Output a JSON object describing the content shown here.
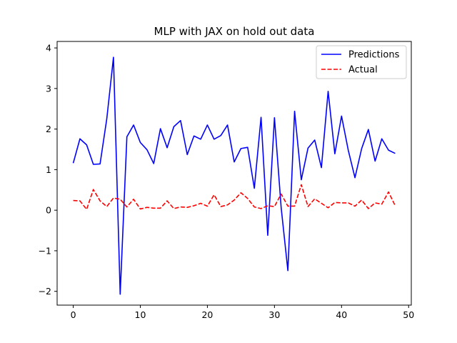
{
  "chart_data": {
    "type": "line",
    "title": "MLP with JAX on hold out data",
    "xlabel": "",
    "ylabel": "",
    "xlim": [
      -2.4,
      50.4
    ],
    "ylim": [
      -2.34,
      4.16
    ],
    "xticks": [
      0,
      10,
      20,
      30,
      40,
      50
    ],
    "xtick_labels": [
      "0",
      "10",
      "20",
      "30",
      "40",
      "50"
    ],
    "yticks": [
      -2,
      -1,
      0,
      1,
      2,
      3,
      4
    ],
    "ytick_labels": [
      "−2",
      "−1",
      "0",
      "1",
      "2",
      "3",
      "4"
    ],
    "grid": false,
    "legend_position": "top-right",
    "x": [
      0,
      1,
      2,
      3,
      4,
      5,
      6,
      7,
      8,
      9,
      10,
      11,
      12,
      13,
      14,
      15,
      16,
      17,
      18,
      19,
      20,
      21,
      22,
      23,
      24,
      25,
      26,
      27,
      28,
      29,
      30,
      31,
      32,
      33,
      34,
      35,
      36,
      37,
      38,
      39,
      40,
      41,
      42,
      43,
      44,
      45,
      46,
      47,
      48
    ],
    "series": [
      {
        "name": "Predictions",
        "color": "#0000ff",
        "style": "solid",
        "values": [
          1.16,
          1.76,
          1.61,
          1.13,
          1.14,
          2.25,
          3.77,
          -2.07,
          1.81,
          2.1,
          1.67,
          1.49,
          1.15,
          2.01,
          1.54,
          2.06,
          2.21,
          1.37,
          1.83,
          1.75,
          2.1,
          1.75,
          1.84,
          2.1,
          1.19,
          1.52,
          1.55,
          0.54,
          2.29,
          -0.62,
          2.28,
          0.06,
          -1.49,
          2.44,
          0.75,
          1.53,
          1.73,
          1.05,
          2.93,
          1.39,
          2.32,
          1.48,
          0.8,
          1.52,
          1.99,
          1.21,
          1.76,
          1.48,
          1.4
        ]
      },
      {
        "name": "Actual",
        "color": "#ff0000",
        "style": "dashed",
        "values": [
          0.24,
          0.23,
          0.02,
          0.51,
          0.23,
          0.09,
          0.3,
          0.27,
          0.08,
          0.27,
          0.03,
          0.07,
          0.05,
          0.05,
          0.23,
          0.04,
          0.08,
          0.07,
          0.11,
          0.17,
          0.1,
          0.38,
          0.09,
          0.13,
          0.25,
          0.43,
          0.29,
          0.08,
          0.04,
          0.11,
          0.09,
          0.4,
          0.1,
          0.1,
          0.63,
          0.09,
          0.28,
          0.17,
          0.06,
          0.19,
          0.18,
          0.18,
          0.1,
          0.25,
          0.04,
          0.18,
          0.15,
          0.45,
          0.11
        ]
      }
    ]
  }
}
